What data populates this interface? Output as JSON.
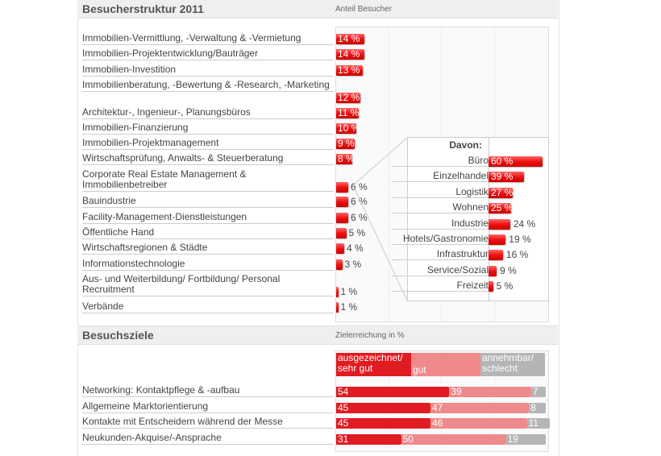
{
  "chart_data": [
    {
      "type": "bar",
      "title": "Besucherstruktur 2011",
      "subtitle": "Anteil Besucher",
      "unit": "%",
      "categories": [
        "Immobilien-Vermittlung, -Verwaltung & -Vermietung",
        "Immobilien-Projektentwicklung/Bauträger",
        "Immobilien-Investition",
        "Immobilienberatung, -Bewertung & -Research, -Marketing",
        "Architektur-, Ingenieur-, Planungsbüros",
        "Immobilien-Finanzierung",
        "Immobilien-Projektmanagement",
        "Wirtschaftsprüfung, Anwalts- & Steuerberatung",
        "Corporate Real Estate Management & Immobilienbetreiber",
        "Bauindustrie",
        "Facility-Management-Dienstleistungen",
        "Öffentliche Hand",
        "Wirtschaftsregionen & Städte",
        "Informationstechnologie",
        "Aus- und Weiterbildung/ Fortbildung/ Personal Recruitment",
        "Verbände"
      ],
      "values": [
        14,
        14,
        13,
        12,
        11,
        10,
        9,
        8,
        6,
        6,
        6,
        5,
        4,
        3,
        1,
        1
      ]
    },
    {
      "type": "bar",
      "title": "Davon:",
      "unit": "%",
      "categories": [
        "Büro",
        "Einzelhandel",
        "Logistik",
        "Wohnen",
        "Industrie",
        "Hotels/Gastronomie",
        "Infrastruktur",
        "Service/Sozial",
        "Freizeit"
      ],
      "values": [
        60,
        39,
        27,
        25,
        24,
        19,
        16,
        9,
        5
      ]
    },
    {
      "type": "bar",
      "stacked": true,
      "title": "Besuchsziele",
      "subtitle": "Zielerreichung in %",
      "categories": [
        "Networking: Kontaktpflege & -aufbau",
        "Allgemeine Marktorientierung",
        "Kontakte mit Entscheidern während der Messe",
        "Neukunden-Akquise/-Ansprache"
      ],
      "series": [
        {
          "name": "ausgezeichnet/ sehr gut",
          "color": "#e01b22",
          "values": [
            54,
            45,
            45,
            31
          ]
        },
        {
          "name": "gut",
          "color": "#ee8a8c",
          "values": [
            39,
            47,
            46,
            50
          ]
        },
        {
          "name": "annehmbar/ schlecht",
          "color": "#b5b5b5",
          "values": [
            7,
            8,
            11,
            19
          ]
        }
      ]
    }
  ]
}
